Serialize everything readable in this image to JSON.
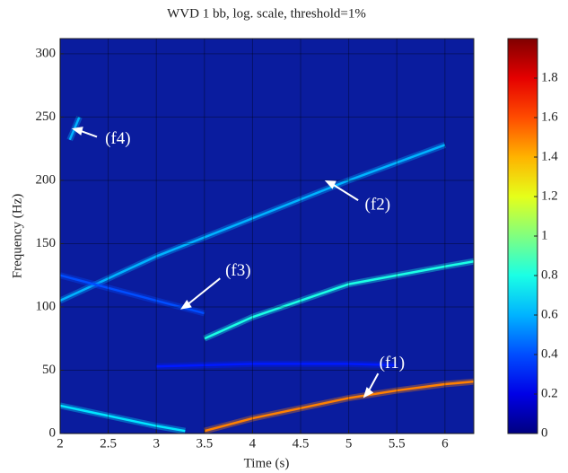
{
  "chart_data": {
    "type": "spectrogram",
    "title": "WVD 1 bb, log. scale, threshold=1%",
    "x_label": "Time (s)",
    "y_label": "Frequency (Hz)",
    "xlim": [
      2,
      6.3
    ],
    "ylim": [
      0,
      312
    ],
    "xticks": [
      2,
      2.5,
      3,
      3.5,
      4,
      4.5,
      5,
      5.5,
      6
    ],
    "yticks": [
      0,
      50,
      100,
      150,
      200,
      250,
      300
    ],
    "grid": true,
    "colormap": "jet",
    "colorbar": {
      "lim": [
        0,
        2
      ],
      "ticks": [
        0,
        0.2,
        0.4,
        0.6,
        0.8,
        1,
        1.2,
        1.4,
        1.6,
        1.8
      ]
    },
    "series": [
      {
        "level": 1.5,
        "x": [
          3.5,
          4,
          4.5,
          5,
          5.5,
          6,
          6.3
        ],
        "values": [
          2,
          12,
          20,
          28,
          34,
          39,
          41
        ]
      },
      {
        "level": 0.7,
        "x": [
          2,
          2.5,
          3,
          3.3
        ],
        "values": [
          22,
          14,
          6,
          2
        ]
      },
      {
        "level": 0.6,
        "x": [
          2,
          3,
          4,
          5,
          6
        ],
        "values": [
          105,
          140,
          170,
          200,
          228
        ]
      },
      {
        "level": 0.4,
        "x": [
          2,
          2.5,
          3,
          3.5
        ],
        "values": [
          125,
          115,
          105,
          95
        ]
      },
      {
        "level": 0.6,
        "x": [
          2.1,
          2.2
        ],
        "values": [
          232,
          250
        ]
      },
      {
        "level": 0.8,
        "x": [
          3.5,
          4,
          4.5,
          5,
          5.5,
          6,
          6.3
        ],
        "values": [
          75,
          92,
          105,
          118,
          125,
          132,
          136
        ]
      },
      {
        "level": 0.3,
        "x": [
          3,
          4,
          5,
          5.5
        ],
        "values": [
          53,
          55,
          55,
          54
        ]
      }
    ],
    "annotations": [
      {
        "text": "(f1)",
        "x": 5.15,
        "y": 28,
        "text_x": 5.45,
        "text_y": 55
      },
      {
        "text": "(f2)",
        "x": 4.75,
        "y": 200,
        "text_x": 5.3,
        "text_y": 180
      },
      {
        "text": "(f3)",
        "x": 3.25,
        "y": 98,
        "text_x": 3.85,
        "text_y": 128
      },
      {
        "text": "(f4)",
        "x": 2.12,
        "y": 241,
        "text_x": 2.6,
        "text_y": 232
      }
    ]
  }
}
